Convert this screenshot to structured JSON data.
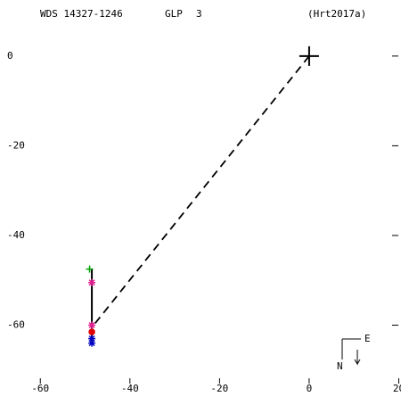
{
  "chart_data": {
    "type": "orbit",
    "title": "WDS 14327-1246",
    "method": "GLP",
    "grade": "3",
    "reference": "(Hrt2017a)",
    "xlim": [
      -69,
      20.5
    ],
    "ylim": [
      -77,
      12.5
    ],
    "xticks": [
      -60,
      -40,
      -20,
      0,
      20
    ],
    "yticks": [
      0,
      -20,
      -40,
      -60
    ],
    "primary": {
      "x": 0,
      "y": 0
    },
    "track": {
      "x": [
        -48.5,
        -48.5
      ],
      "y": [
        -47.5,
        -63.5
      ]
    },
    "predicted": {
      "x": [
        0,
        -48.5
      ],
      "y": [
        0,
        -60.5
      ]
    },
    "series": [
      {
        "marker": "plus",
        "color": "#00a000",
        "x": [
          -49
        ],
        "y": [
          -47.5
        ]
      },
      {
        "marker": "star",
        "color": "#e0208f",
        "x": [
          -48.5,
          -48.5
        ],
        "y": [
          -50.5,
          -60
        ]
      },
      {
        "marker": "circle",
        "color": "#e00000",
        "x": [
          -48.5
        ],
        "y": [
          -61.5
        ]
      },
      {
        "marker": "star",
        "color": "#0000c0",
        "x": [
          -48.5,
          -48.5
        ],
        "y": [
          -63,
          -64
        ]
      }
    ],
    "compass": {
      "east": "E",
      "north": "N"
    }
  }
}
